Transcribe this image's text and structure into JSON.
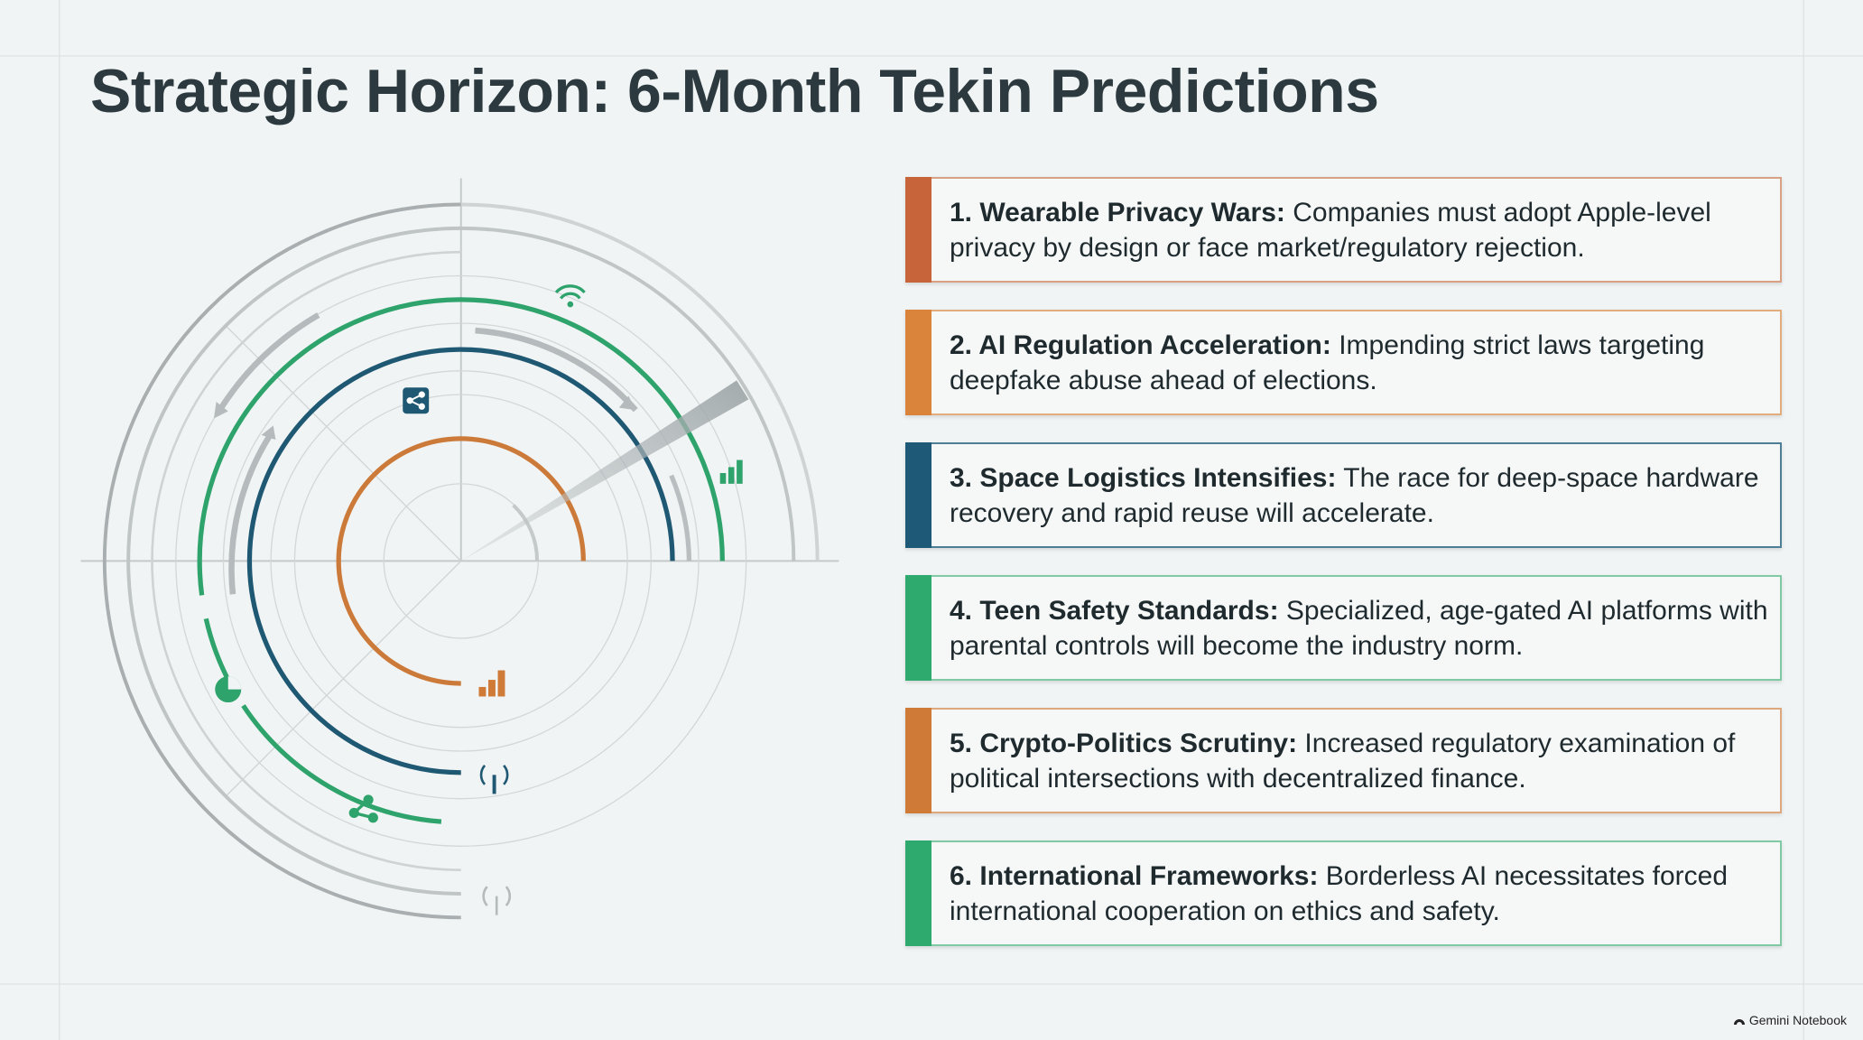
{
  "header": {
    "title": "Strategic Horizon: 6-Month Tekin Predictions"
  },
  "items": [
    {
      "label": "1. Wearable Privacy Wars:",
      "text": "Companies must adopt Apple-level privacy by design or face market/regulatory rejection."
    },
    {
      "label": "2. AI Regulation Acceleration:",
      "text": "Impending strict laws targeting deepfake abuse ahead of elections."
    },
    {
      "label": "3. Space Logistics Intensifies:",
      "text": "The race for deep-space hardware recovery and rapid reuse will accelerate."
    },
    {
      "label": "4. Teen Safety Standards:",
      "text": "Specialized, age-gated AI platforms with parental controls will become the industry norm."
    },
    {
      "label": "5. Crypto-Politics Scrutiny:",
      "text": "Increased regulatory examination of political intersections with decentralized finance."
    },
    {
      "label": "6. International Frameworks:",
      "text": "Borderless AI necessitates forced international cooperation on ethics and safety."
    }
  ],
  "footer": {
    "brand": "Gemini Notebook"
  }
}
